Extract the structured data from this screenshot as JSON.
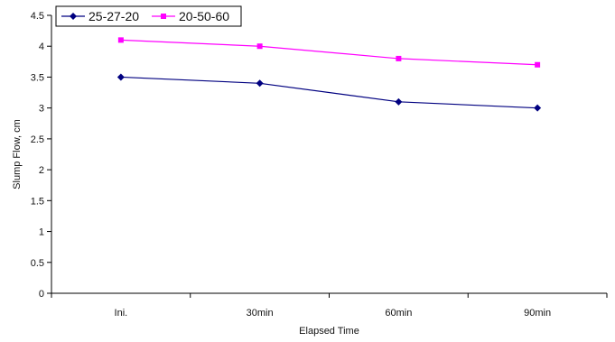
{
  "chart_data": {
    "type": "line",
    "categories": [
      "Ini.",
      "30min",
      "60min",
      "90min"
    ],
    "series": [
      {
        "name": "25-27-20",
        "values": [
          3.5,
          3.4,
          3.1,
          3.0
        ],
        "color": "#000080",
        "marker": "diamond"
      },
      {
        "name": "20-50-60",
        "values": [
          4.1,
          4.0,
          3.8,
          3.7
        ],
        "color": "#ff00ff",
        "marker": "square"
      }
    ],
    "xlabel": "Elapsed Time",
    "ylabel": "Slump Flow, cm",
    "ylim": [
      0,
      4.5
    ],
    "yticks": [
      "0",
      "0.5",
      "1",
      "1.5",
      "2",
      "2.5",
      "3",
      "3.5",
      "4",
      "4.5"
    ],
    "grid": false,
    "legend_position": "top-left"
  }
}
